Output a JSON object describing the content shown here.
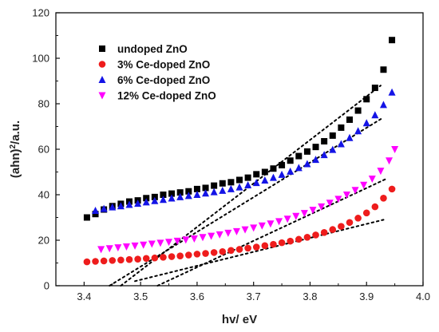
{
  "chart_data": {
    "type": "scatter",
    "xlabel": "hv/ eV",
    "ylabel_main": "(ahn)",
    "ylabel_sup": "2",
    "ylabel_suffix": "/a.u.",
    "xlim": [
      3.35,
      4.0
    ],
    "ylim": [
      0,
      120
    ],
    "x_ticks": [
      "3.4",
      "3.5",
      "3.6",
      "3.7",
      "3.8",
      "3.9",
      "4.0"
    ],
    "x_tick_values": [
      3.4,
      3.5,
      3.6,
      3.7,
      3.8,
      3.9,
      4.0
    ],
    "y_ticks": [
      "0",
      "20",
      "40",
      "60",
      "80",
      "100",
      "120"
    ],
    "y_tick_values": [
      0,
      20,
      40,
      60,
      80,
      100,
      120
    ],
    "grid": false,
    "legend_position": "top-left",
    "series": [
      {
        "name": "undoped ZnO",
        "marker": "square",
        "color": "#000000",
        "x": [
          3.405,
          3.42,
          3.435,
          3.45,
          3.465,
          3.48,
          3.495,
          3.51,
          3.525,
          3.54,
          3.555,
          3.57,
          3.585,
          3.6,
          3.615,
          3.63,
          3.645,
          3.66,
          3.675,
          3.69,
          3.705,
          3.72,
          3.735,
          3.75,
          3.765,
          3.78,
          3.795,
          3.81,
          3.825,
          3.84,
          3.855,
          3.87,
          3.885,
          3.9,
          3.915,
          3.93,
          3.945
        ],
        "y": [
          30,
          31.5,
          33.5,
          35,
          36,
          37,
          37.5,
          38.5,
          39,
          40,
          40.5,
          41,
          41.5,
          42.5,
          43,
          44,
          45,
          45.5,
          46.5,
          47.5,
          49,
          50,
          51.5,
          53,
          55,
          57,
          59,
          61,
          63.5,
          66,
          69.5,
          73,
          77,
          82,
          87,
          95,
          108
        ]
      },
      {
        "name": "3% Ce-doped ZnO",
        "marker": "circle",
        "color": "#ee1c1c",
        "x": [
          3.405,
          3.42,
          3.435,
          3.45,
          3.465,
          3.48,
          3.495,
          3.51,
          3.525,
          3.54,
          3.555,
          3.57,
          3.585,
          3.6,
          3.615,
          3.63,
          3.645,
          3.66,
          3.675,
          3.69,
          3.705,
          3.72,
          3.735,
          3.75,
          3.765,
          3.78,
          3.795,
          3.81,
          3.825,
          3.84,
          3.855,
          3.87,
          3.885,
          3.9,
          3.915,
          3.93,
          3.945
        ],
        "y": [
          10.5,
          10.7,
          10.9,
          11.1,
          11.3,
          11.5,
          11.7,
          12,
          12.2,
          12.5,
          12.8,
          13.1,
          13.5,
          13.9,
          14.2,
          14.6,
          15,
          15.5,
          16,
          16.5,
          17,
          17.6,
          18.2,
          18.9,
          19.6,
          20.4,
          21.3,
          22.3,
          23.4,
          24.7,
          26.1,
          27.8,
          29.7,
          32,
          34.7,
          38.5,
          42.5
        ]
      },
      {
        "name": "6% Ce-doped ZnO",
        "marker": "triangle-up",
        "color": "#1414e6",
        "x": [
          3.42,
          3.435,
          3.45,
          3.465,
          3.48,
          3.495,
          3.51,
          3.525,
          3.54,
          3.555,
          3.57,
          3.585,
          3.6,
          3.615,
          3.63,
          3.645,
          3.66,
          3.675,
          3.69,
          3.705,
          3.72,
          3.735,
          3.75,
          3.765,
          3.78,
          3.795,
          3.81,
          3.825,
          3.84,
          3.855,
          3.87,
          3.885,
          3.9,
          3.915,
          3.93,
          3.945
        ],
        "y": [
          33,
          33.8,
          34.5,
          35,
          35.6,
          36.1,
          36.7,
          37.3,
          37.8,
          38.4,
          39,
          39.5,
          40,
          40.6,
          41.2,
          41.8,
          42.5,
          43.3,
          44.2,
          45.2,
          46.3,
          47.5,
          48.8,
          50.2,
          51.8,
          53.5,
          55.4,
          57.5,
          59.8,
          62.3,
          65,
          68,
          71.5,
          75,
          79.5,
          85
        ]
      },
      {
        "name": "12% Ce-doped ZnO",
        "marker": "triangle-down",
        "color": "#ff00ff",
        "x": [
          3.43,
          3.445,
          3.46,
          3.475,
          3.49,
          3.505,
          3.52,
          3.535,
          3.55,
          3.565,
          3.58,
          3.595,
          3.61,
          3.625,
          3.64,
          3.655,
          3.67,
          3.685,
          3.7,
          3.715,
          3.73,
          3.745,
          3.76,
          3.775,
          3.79,
          3.805,
          3.82,
          3.835,
          3.85,
          3.865,
          3.88,
          3.895,
          3.91,
          3.925,
          3.94,
          3.95
        ],
        "y": [
          16,
          16.4,
          16.8,
          17.2,
          17.6,
          18,
          18.4,
          18.8,
          19.2,
          19.7,
          20.2,
          20.7,
          21.3,
          21.9,
          22.5,
          23.2,
          23.9,
          24.7,
          25.5,
          26.4,
          27.3,
          28.3,
          29.4,
          30.6,
          31.9,
          33.3,
          34.8,
          36.4,
          38.1,
          40,
          42,
          44.3,
          47,
          50.5,
          55,
          60
        ]
      }
    ],
    "fit_lines": [
      {
        "series": "undoped ZnO",
        "x": [
          3.465,
          3.925
        ],
        "y": [
          0,
          88
        ]
      },
      {
        "series": "3% Ce-doped ZnO",
        "x": [
          3.49,
          3.93
        ],
        "y": [
          2,
          29
        ]
      },
      {
        "series": "6% Ce-doped ZnO",
        "x": [
          3.445,
          3.93
        ],
        "y": [
          0,
          74
        ]
      },
      {
        "series": "12% Ce-doped ZnO",
        "x": [
          3.53,
          3.935
        ],
        "y": [
          0,
          47
        ]
      }
    ]
  }
}
